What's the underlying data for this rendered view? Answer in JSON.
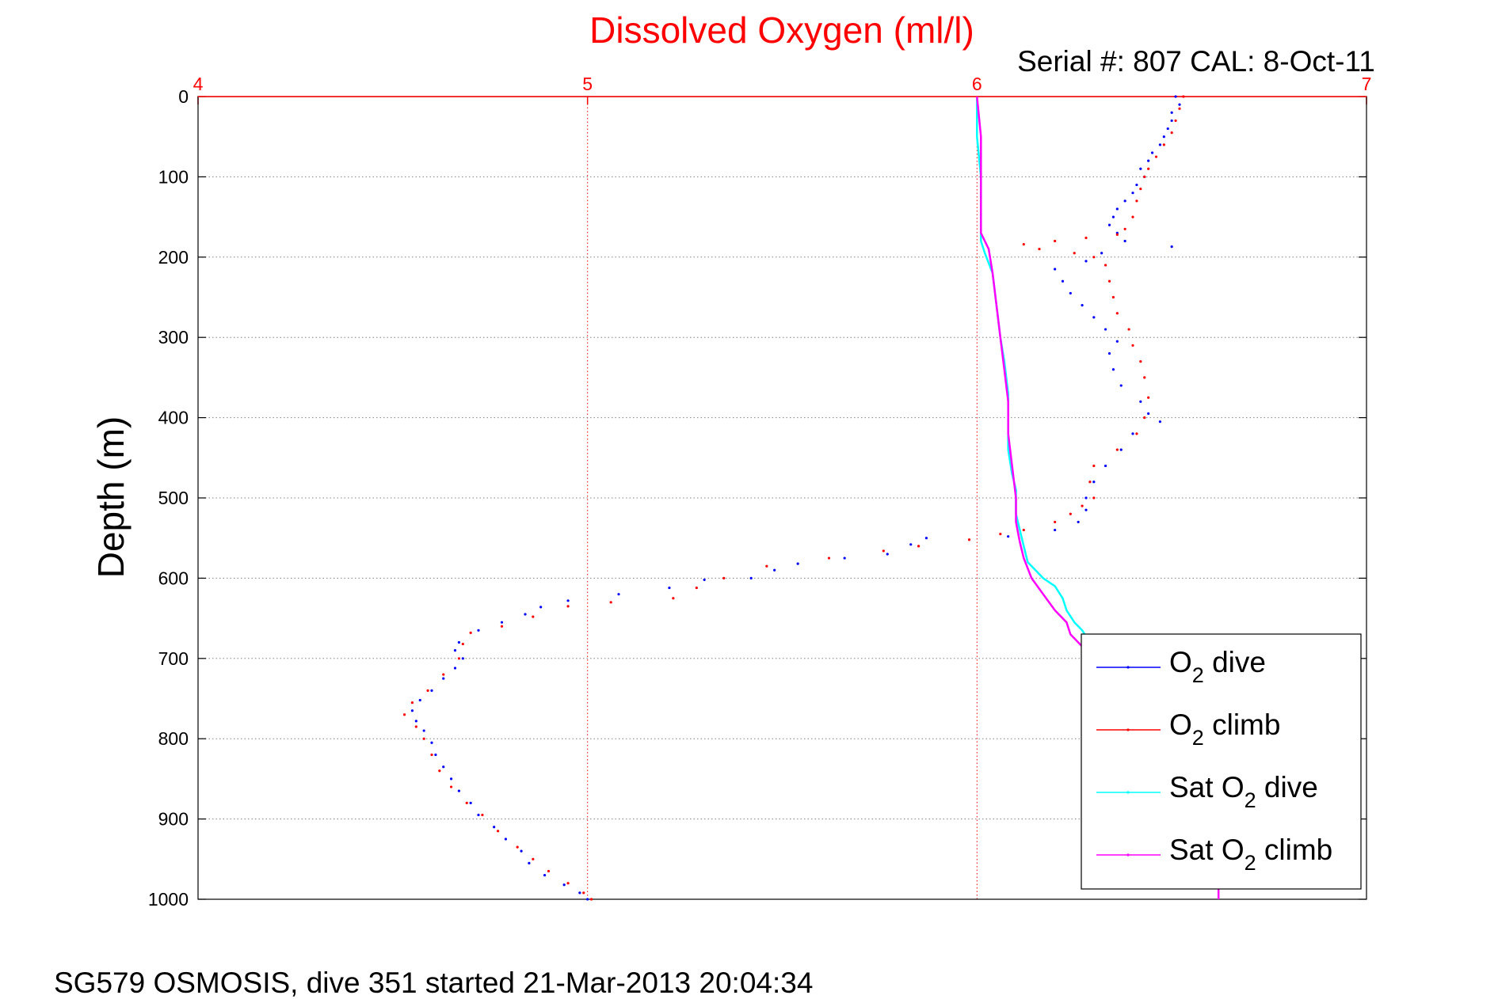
{
  "chart_data": {
    "type": "scatter",
    "title": "Dissolved Oxygen (ml/l)",
    "subtitle": "Serial #: 807  CAL: 8-Oct-11",
    "ylabel": "Depth (m)",
    "footer": "SG579 OSMOSIS, dive 351 started 21-Mar-2013 20:04:34",
    "xlim": [
      4,
      7
    ],
    "ylim": [
      0,
      1000
    ],
    "y_reversed": true,
    "x_axis_position": "top",
    "x_ticks": [
      "4",
      "5",
      "6",
      "7"
    ],
    "y_ticks": [
      "0",
      "100",
      "200",
      "300",
      "400",
      "500",
      "600",
      "700",
      "800",
      "900",
      "1000"
    ],
    "grid": true,
    "legend_position": "bottom-right",
    "colors": {
      "o2_dive": "#0000ff",
      "o2_climb": "#ff0000",
      "sat_dive": "#00ffff",
      "sat_climb": "#ff00ff",
      "title": "#ff0000",
      "x_axis": "#ff0000",
      "axis": "#000000",
      "grid": "#808080"
    },
    "series": [
      {
        "key": "o2_dive",
        "name": "O2 dive",
        "legend_main": "O",
        "legend_sub": "2",
        "legend_rest": " dive",
        "style": "markers",
        "points": [
          [
            6.51,
            0
          ],
          [
            6.52,
            10
          ],
          [
            6.5,
            20
          ],
          [
            6.5,
            30
          ],
          [
            6.49,
            40
          ],
          [
            6.48,
            50
          ],
          [
            6.47,
            60
          ],
          [
            6.45,
            70
          ],
          [
            6.44,
            80
          ],
          [
            6.42,
            90
          ],
          [
            6.43,
            100
          ],
          [
            6.41,
            110
          ],
          [
            6.4,
            120
          ],
          [
            6.38,
            130
          ],
          [
            6.36,
            140
          ],
          [
            6.35,
            150
          ],
          [
            6.34,
            160
          ],
          [
            6.36,
            170
          ],
          [
            6.38,
            180
          ],
          [
            6.5,
            187
          ],
          [
            6.32,
            195
          ],
          [
            6.28,
            205
          ],
          [
            6.2,
            215
          ],
          [
            6.22,
            230
          ],
          [
            6.24,
            245
          ],
          [
            6.27,
            260
          ],
          [
            6.3,
            275
          ],
          [
            6.33,
            290
          ],
          [
            6.36,
            305
          ],
          [
            6.34,
            320
          ],
          [
            6.35,
            340
          ],
          [
            6.37,
            360
          ],
          [
            6.42,
            380
          ],
          [
            6.44,
            395
          ],
          [
            6.47,
            405
          ],
          [
            6.4,
            420
          ],
          [
            6.37,
            440
          ],
          [
            6.33,
            460
          ],
          [
            6.3,
            480
          ],
          [
            6.28,
            500
          ],
          [
            6.28,
            515
          ],
          [
            6.26,
            530
          ],
          [
            6.2,
            540
          ],
          [
            6.08,
            548
          ],
          [
            5.87,
            550
          ],
          [
            5.83,
            558
          ],
          [
            5.77,
            570
          ],
          [
            5.66,
            575
          ],
          [
            5.54,
            582
          ],
          [
            5.48,
            590
          ],
          [
            5.42,
            600
          ],
          [
            5.3,
            602
          ],
          [
            5.21,
            612
          ],
          [
            5.08,
            620
          ],
          [
            4.95,
            628
          ],
          [
            4.88,
            636
          ],
          [
            4.84,
            645
          ],
          [
            4.78,
            655
          ],
          [
            4.72,
            665
          ],
          [
            4.67,
            680
          ],
          [
            4.66,
            690
          ],
          [
            4.68,
            700
          ],
          [
            4.66,
            712
          ],
          [
            4.63,
            725
          ],
          [
            4.6,
            740
          ],
          [
            4.57,
            752
          ],
          [
            4.55,
            765
          ],
          [
            4.56,
            778
          ],
          [
            4.58,
            790
          ],
          [
            4.6,
            805
          ],
          [
            4.61,
            820
          ],
          [
            4.63,
            835
          ],
          [
            4.65,
            850
          ],
          [
            4.67,
            865
          ],
          [
            4.7,
            880
          ],
          [
            4.72,
            895
          ],
          [
            4.76,
            910
          ],
          [
            4.79,
            925
          ],
          [
            4.83,
            940
          ],
          [
            4.85,
            955
          ],
          [
            4.89,
            970
          ],
          [
            4.94,
            982
          ],
          [
            4.98,
            992
          ],
          [
            5.0,
            1000
          ]
        ]
      },
      {
        "key": "o2_climb",
        "name": "O2 climb",
        "legend_main": "O",
        "legend_sub": "2",
        "legend_rest": " climb",
        "style": "markers",
        "points": [
          [
            6.53,
            0
          ],
          [
            6.52,
            15
          ],
          [
            6.51,
            30
          ],
          [
            6.5,
            45
          ],
          [
            6.48,
            60
          ],
          [
            6.46,
            75
          ],
          [
            6.44,
            90
          ],
          [
            6.43,
            100
          ],
          [
            6.42,
            115
          ],
          [
            6.41,
            130
          ],
          [
            6.4,
            150
          ],
          [
            6.38,
            165
          ],
          [
            6.36,
            172
          ],
          [
            6.28,
            176
          ],
          [
            6.2,
            180
          ],
          [
            6.12,
            184
          ],
          [
            6.16,
            190
          ],
          [
            6.25,
            195
          ],
          [
            6.3,
            200
          ],
          [
            6.33,
            210
          ],
          [
            6.34,
            230
          ],
          [
            6.35,
            250
          ],
          [
            6.36,
            270
          ],
          [
            6.39,
            290
          ],
          [
            6.4,
            310
          ],
          [
            6.42,
            330
          ],
          [
            6.43,
            350
          ],
          [
            6.44,
            375
          ],
          [
            6.43,
            400
          ],
          [
            6.41,
            420
          ],
          [
            6.36,
            440
          ],
          [
            6.3,
            460
          ],
          [
            6.29,
            480
          ],
          [
            6.3,
            500
          ],
          [
            6.27,
            510
          ],
          [
            6.24,
            520
          ],
          [
            6.2,
            530
          ],
          [
            6.12,
            540
          ],
          [
            6.06,
            545
          ],
          [
            5.98,
            552
          ],
          [
            5.85,
            560
          ],
          [
            5.76,
            566
          ],
          [
            5.62,
            575
          ],
          [
            5.46,
            585
          ],
          [
            5.35,
            600
          ],
          [
            5.28,
            612
          ],
          [
            5.22,
            625
          ],
          [
            5.06,
            630
          ],
          [
            4.95,
            635
          ],
          [
            4.86,
            648
          ],
          [
            4.78,
            660
          ],
          [
            4.7,
            668
          ],
          [
            4.68,
            682
          ],
          [
            4.67,
            700
          ],
          [
            4.63,
            720
          ],
          [
            4.59,
            740
          ],
          [
            4.55,
            755
          ],
          [
            4.53,
            770
          ],
          [
            4.56,
            785
          ],
          [
            4.58,
            800
          ],
          [
            4.6,
            820
          ],
          [
            4.62,
            840
          ],
          [
            4.65,
            860
          ],
          [
            4.69,
            880
          ],
          [
            4.73,
            895
          ],
          [
            4.77,
            915
          ],
          [
            4.82,
            935
          ],
          [
            4.86,
            950
          ],
          [
            4.9,
            965
          ],
          [
            4.95,
            980
          ],
          [
            4.99,
            992
          ],
          [
            5.01,
            1000
          ]
        ]
      },
      {
        "key": "sat_dive",
        "name": "Sat O2 dive",
        "legend_main": "Sat O",
        "legend_sub": "2",
        "legend_rest": " dive",
        "style": "line",
        "points": [
          [
            6.0,
            0
          ],
          [
            6.0,
            50
          ],
          [
            6.01,
            100
          ],
          [
            6.01,
            150
          ],
          [
            6.01,
            180
          ],
          [
            6.02,
            195
          ],
          [
            6.04,
            220
          ],
          [
            6.05,
            260
          ],
          [
            6.06,
            300
          ],
          [
            6.07,
            330
          ],
          [
            6.08,
            370
          ],
          [
            6.08,
            410
          ],
          [
            6.08,
            440
          ],
          [
            6.09,
            470
          ],
          [
            6.1,
            490
          ],
          [
            6.1,
            520
          ],
          [
            6.11,
            540
          ],
          [
            6.12,
            560
          ],
          [
            6.13,
            580
          ],
          [
            6.17,
            600
          ],
          [
            6.2,
            610
          ],
          [
            6.22,
            625
          ],
          [
            6.23,
            640
          ],
          [
            6.25,
            655
          ],
          [
            6.27,
            665
          ],
          [
            6.29,
            680
          ]
        ]
      },
      {
        "key": "sat_climb",
        "name": "Sat O2 climb",
        "legend_main": "Sat O",
        "legend_sub": "2",
        "legend_rest": " climb",
        "style": "line",
        "points": [
          [
            6.0,
            0
          ],
          [
            6.01,
            50
          ],
          [
            6.01,
            100
          ],
          [
            6.01,
            150
          ],
          [
            6.01,
            170
          ],
          [
            6.03,
            190
          ],
          [
            6.04,
            220
          ],
          [
            6.05,
            260
          ],
          [
            6.06,
            300
          ],
          [
            6.07,
            340
          ],
          [
            6.08,
            380
          ],
          [
            6.08,
            420
          ],
          [
            6.09,
            460
          ],
          [
            6.1,
            500
          ],
          [
            6.1,
            530
          ],
          [
            6.11,
            555
          ],
          [
            6.12,
            575
          ],
          [
            6.14,
            600
          ],
          [
            6.17,
            620
          ],
          [
            6.2,
            640
          ],
          [
            6.23,
            655
          ],
          [
            6.24,
            670
          ],
          [
            6.27,
            685
          ]
        ]
      }
    ],
    "sat_climb_bottom_points": [
      [
        6.62,
        980
      ],
      [
        6.62,
        990
      ],
      [
        6.62,
        1000
      ]
    ]
  }
}
